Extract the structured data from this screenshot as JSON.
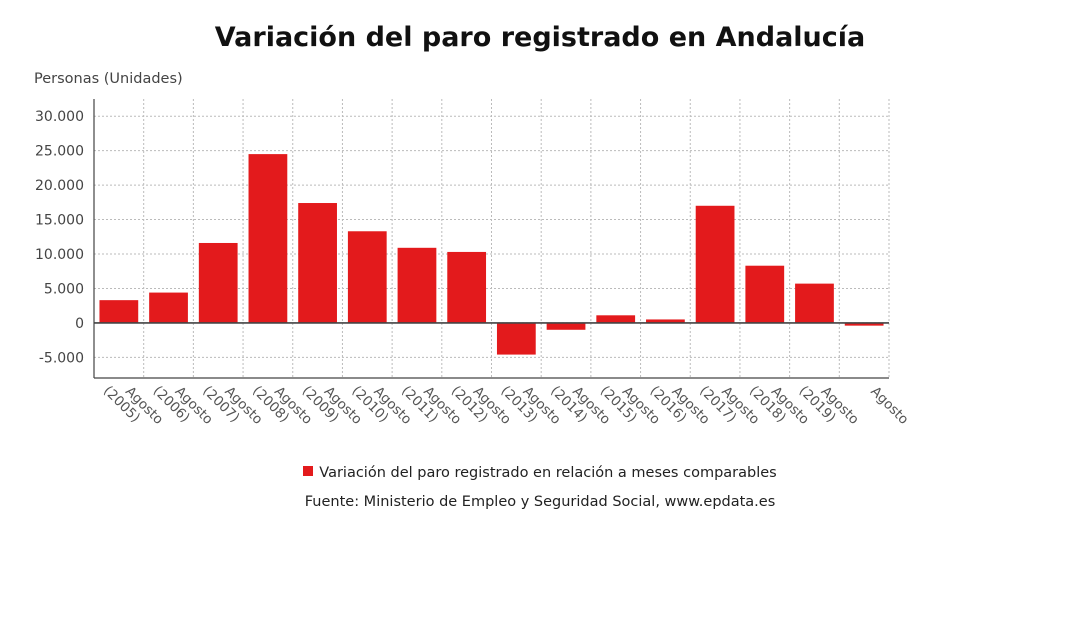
{
  "chart_data": {
    "type": "bar",
    "title": "Variación del paro registrado en Andalucía",
    "ylabel": "Personas (Unidades)",
    "xlabel": "",
    "categories": [
      [
        "Agosto",
        "(2005)"
      ],
      [
        "Agosto",
        "(2006)"
      ],
      [
        "Agosto",
        "(2007)"
      ],
      [
        "Agosto",
        "(2008)"
      ],
      [
        "Agosto",
        "(2009)"
      ],
      [
        "Agosto",
        "(2010)"
      ],
      [
        "Agosto",
        "(2011)"
      ],
      [
        "Agosto",
        "(2012)"
      ],
      [
        "Agosto",
        "(2013)"
      ],
      [
        "Agosto",
        "(2014)"
      ],
      [
        "Agosto",
        "(2015)"
      ],
      [
        "Agosto",
        "(2016)"
      ],
      [
        "Agosto",
        "(2017)"
      ],
      [
        "Agosto",
        "(2018)"
      ],
      [
        "Agosto",
        "(2019)"
      ],
      [
        "Agosto"
      ]
    ],
    "series": [
      {
        "name": "Variación del paro registrado en relación a meses comparables",
        "color": "#e31a1c",
        "values": [
          3300,
          4400,
          11600,
          24500,
          17400,
          13300,
          10900,
          10300,
          -4600,
          -1000,
          1100,
          500,
          17000,
          8300,
          5700,
          -400
        ]
      }
    ],
    "ylim": [
      -8000,
      32500
    ],
    "yticks": [
      30000,
      25000,
      20000,
      15000,
      10000,
      5000,
      0,
      -5000
    ],
    "ytick_labels": [
      "30.000",
      "25.000",
      "20.000",
      "15.000",
      "10.000",
      "5.000",
      "0",
      "-5.000"
    ],
    "grid": true,
    "legend_position": "bottom"
  },
  "source": "Fuente: Ministerio de Empleo y Seguridad Social, www.epdata.es"
}
